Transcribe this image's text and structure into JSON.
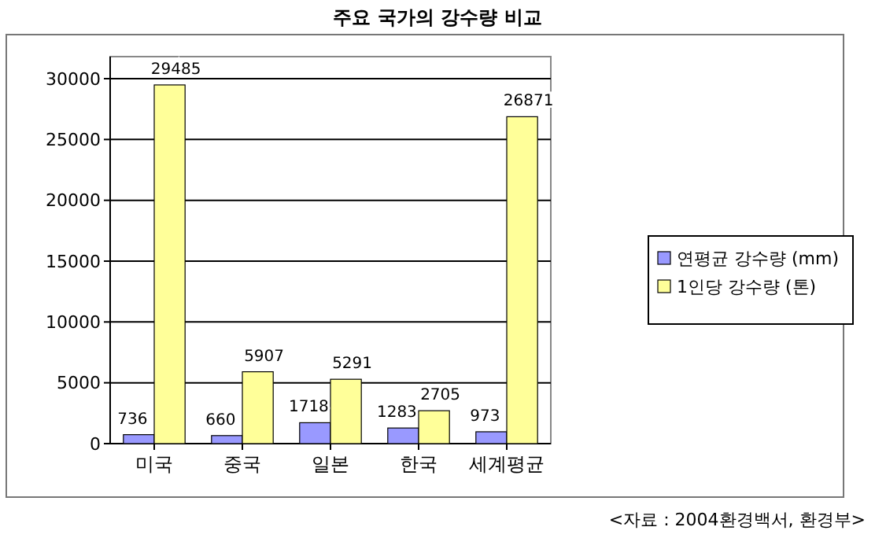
{
  "chart_data": {
    "type": "bar",
    "title": "주요 국가의 강수량 비교",
    "categories": [
      "미국",
      "중국",
      "일본",
      "한국",
      "세계평균"
    ],
    "series": [
      {
        "name": "연평균 강수량 (mm)",
        "color": "#9999ff",
        "values": [
          736,
          660,
          1718,
          1283,
          973
        ]
      },
      {
        "name": "1인당 강수량 (톤)",
        "color": "#ffff99",
        "values": [
          29485,
          5907,
          5291,
          2705,
          26871
        ]
      }
    ],
    "ylim": [
      0,
      30000
    ],
    "yticks": [
      0,
      5000,
      10000,
      15000,
      20000,
      25000,
      30000
    ],
    "grid": "y",
    "legend": "right",
    "data_labels": true,
    "annotations": [
      "<자료 : 2004환경백서, 환경부>"
    ]
  }
}
